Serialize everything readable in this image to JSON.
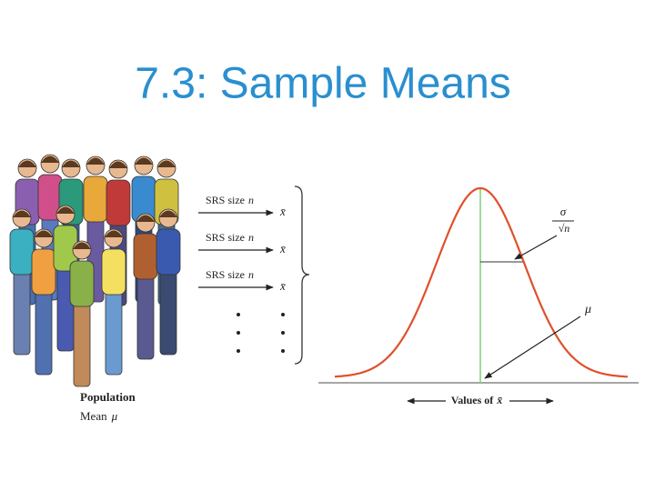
{
  "title": "7.3: Sample Means",
  "population": {
    "label": "Population",
    "mean_label": "Mean",
    "mean_symbol": "μ"
  },
  "samples": [
    {
      "label": "SRS size",
      "n": "n",
      "mean": "x̄"
    },
    {
      "label": "SRS size",
      "n": "n",
      "mean": "x̄"
    },
    {
      "label": "SRS size",
      "n": "n",
      "mean": "x̄"
    }
  ],
  "curve": {
    "sigma": "σ",
    "sqrt_n": "√n",
    "mean_symbol": "μ",
    "axis_label": "Values of",
    "axis_symbol": "x̄"
  }
}
